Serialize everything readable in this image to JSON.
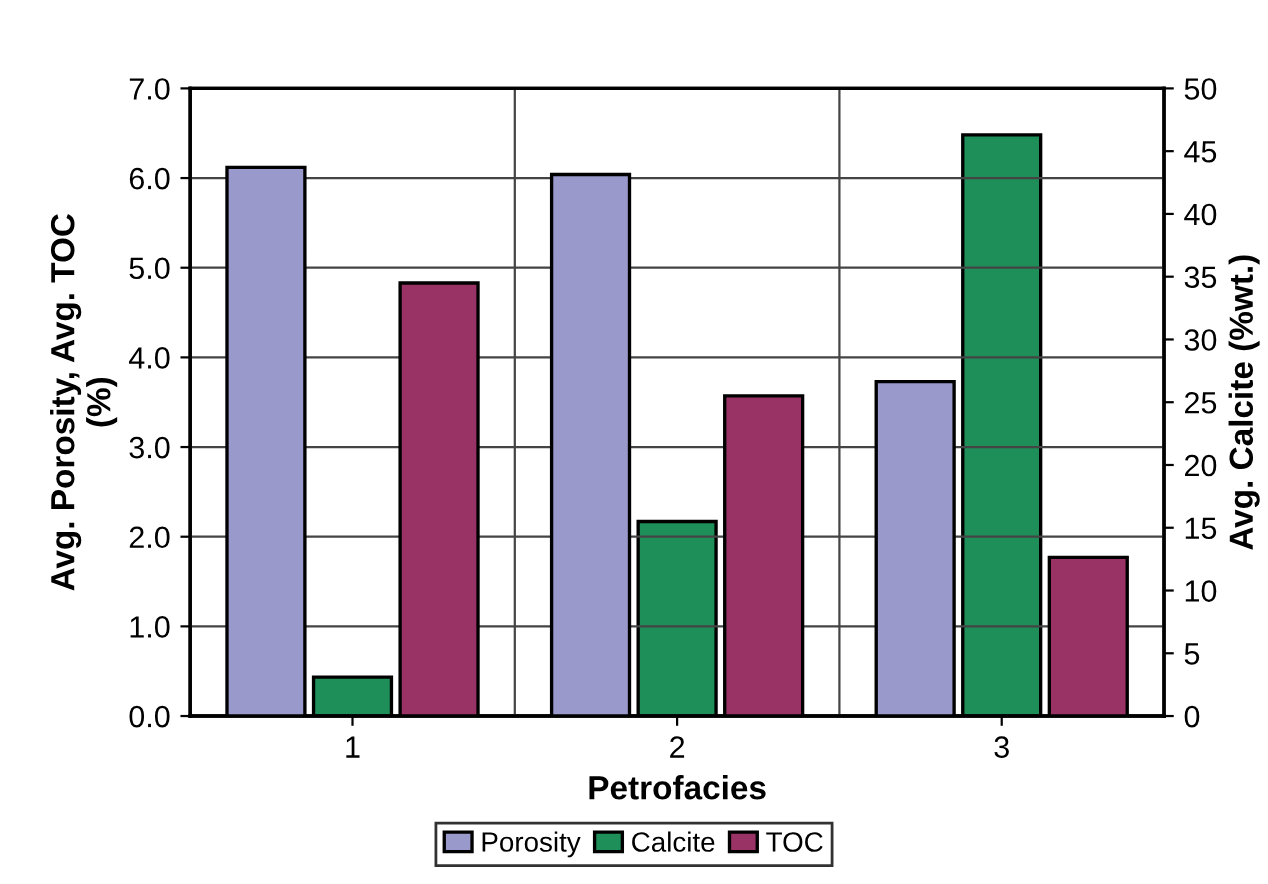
{
  "chart_data": {
    "type": "bar",
    "xlabel": "Petrofacies",
    "ylabel": "Avg. Porosity, Avg. TOC\n(%)",
    "y2label": "Avg. Calcite (%wt.)",
    "categories": [
      "1",
      "2",
      "3"
    ],
    "series": [
      {
        "name": "Porosity",
        "color": "#9999cc",
        "values": [
          6.12,
          6.04,
          3.73
        ]
      },
      {
        "name": "Calcite",
        "color": "#1f8f5a",
        "values": [
          3.1,
          15.5,
          46.3
        ],
        "axis": "y2"
      },
      {
        "name": "TOC",
        "color": "#993366",
        "values": [
          4.83,
          3.57,
          1.77
        ]
      }
    ],
    "ylim": [
      0,
      7
    ],
    "yticks": [
      {
        "value": 0,
        "label": "0.0"
      },
      {
        "value": 1,
        "label": "1.0"
      },
      {
        "value": 2,
        "label": "2.0"
      },
      {
        "value": 3,
        "label": "3.0"
      },
      {
        "value": 4,
        "label": "4.0"
      },
      {
        "value": 5,
        "label": "5.0"
      },
      {
        "value": 6,
        "label": "6.0"
      },
      {
        "value": 7,
        "label": "7.0"
      }
    ],
    "y2lim": [
      0,
      50
    ],
    "y2ticks": [
      0,
      5,
      10,
      15,
      20,
      25,
      30,
      35,
      40,
      45,
      50
    ],
    "grid": true,
    "legend": "bottom"
  }
}
